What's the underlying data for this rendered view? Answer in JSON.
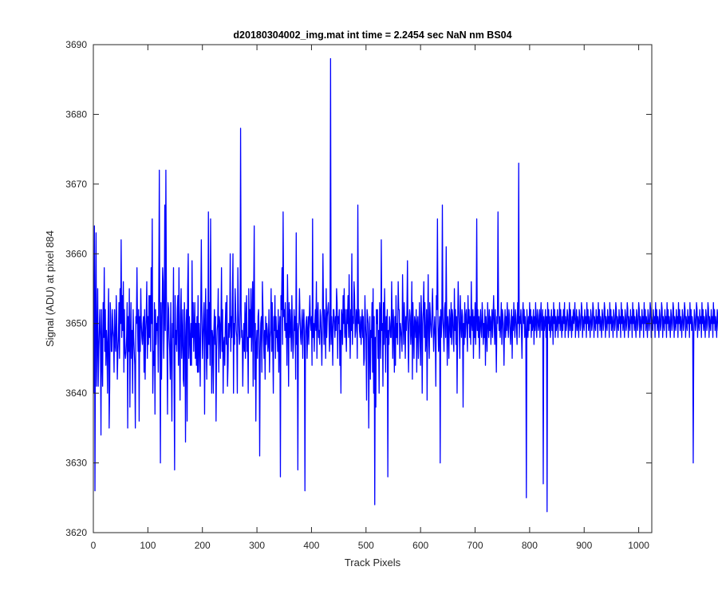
{
  "chart_data": {
    "type": "line",
    "title": "d20180304002_img.mat int time = 2.2454 sec  NaN nm BS04",
    "xlabel": "Track Pixels",
    "ylabel": "Signal (ADU) at pixel 884",
    "xlim": [
      0,
      1024
    ],
    "ylim": [
      3620,
      3690
    ],
    "xticks": [
      0,
      100,
      200,
      300,
      400,
      500,
      600,
      700,
      800,
      900,
      1000
    ],
    "yticks": [
      3620,
      3630,
      3640,
      3650,
      3660,
      3670,
      3680,
      3690
    ],
    "grid": false,
    "legend": "none",
    "series_color": "#0000ff",
    "series": [
      {
        "x_start": 1,
        "x_step": 1,
        "values": [
          3640,
          3664,
          3626,
          3652,
          3663,
          3641,
          3647,
          3655,
          3641,
          3646,
          3649,
          3652,
          3648,
          3634,
          3652,
          3645,
          3641,
          3653,
          3648,
          3658,
          3646,
          3652,
          3644,
          3649,
          3647,
          3640,
          3650,
          3655,
          3635,
          3641,
          3653,
          3651,
          3646,
          3646,
          3652,
          3649,
          3648,
          3643,
          3652,
          3647,
          3646,
          3654,
          3650,
          3642,
          3646,
          3648,
          3653,
          3645,
          3655,
          3650,
          3662,
          3648,
          3654,
          3649,
          3656,
          3643,
          3652,
          3646,
          3645,
          3646,
          3648,
          3653,
          3635,
          3651,
          3646,
          3655,
          3638,
          3648,
          3653,
          3645,
          3649,
          3640,
          3652,
          3648,
          3646,
          3644,
          3635,
          3651,
          3650,
          3658,
          3650,
          3646,
          3652,
          3636,
          3651,
          3646,
          3655,
          3650,
          3648,
          3647,
          3650,
          3651,
          3643,
          3652,
          3642,
          3649,
          3651,
          3656,
          3645,
          3651,
          3647,
          3654,
          3648,
          3654,
          3646,
          3658,
          3650,
          3665,
          3640,
          3646,
          3644,
          3653,
          3637,
          3652,
          3647,
          3650,
          3649,
          3651,
          3643,
          3655,
          3672,
          3648,
          3630,
          3653,
          3642,
          3650,
          3658,
          3656,
          3645,
          3650,
          3667,
          3649,
          3672,
          3654,
          3648,
          3637,
          3653,
          3652,
          3648,
          3646,
          3642,
          3653,
          3646,
          3636,
          3650,
          3648,
          3658,
          3642,
          3629,
          3654,
          3647,
          3649,
          3646,
          3652,
          3654,
          3644,
          3658,
          3647,
          3639,
          3651,
          3655,
          3645,
          3648,
          3652,
          3642,
          3641,
          3653,
          3650,
          3633,
          3648,
          3652,
          3636,
          3655,
          3660,
          3645,
          3651,
          3648,
          3644,
          3650,
          3644,
          3659,
          3648,
          3653,
          3646,
          3649,
          3653,
          3645,
          3650,
          3644,
          3651,
          3643,
          3654,
          3643,
          3650,
          3647,
          3641,
          3652,
          3662,
          3651,
          3645,
          3648,
          3651,
          3653,
          3637,
          3650,
          3655,
          3647,
          3642,
          3652,
          3645,
          3666,
          3647,
          3653,
          3644,
          3665,
          3650,
          3640,
          3649,
          3648,
          3640,
          3649,
          3652,
          3647,
          3651,
          3636,
          3646,
          3649,
          3650,
          3655,
          3643,
          3651,
          3650,
          3645,
          3650,
          3658,
          3646,
          3652,
          3640,
          3647,
          3648,
          3644,
          3650,
          3653,
          3647,
          3654,
          3641,
          3644,
          3650,
          3648,
          3650,
          3660,
          3646,
          3651,
          3648,
          3654,
          3660,
          3640,
          3650,
          3647,
          3655,
          3652,
          3649,
          3648,
          3640,
          3658,
          3652,
          3649,
          3647,
          3648,
          3678,
          3652,
          3648,
          3649,
          3641,
          3647,
          3650,
          3646,
          3653,
          3645,
          3651,
          3654,
          3646,
          3648,
          3640,
          3655,
          3648,
          3652,
          3648,
          3655,
          3646,
          3650,
          3656,
          3641,
          3654,
          3664,
          3642,
          3650,
          3636,
          3647,
          3649,
          3645,
          3651,
          3652,
          3648,
          3631,
          3646,
          3650,
          3651,
          3643,
          3656,
          3652,
          3648,
          3645,
          3649,
          3642,
          3651,
          3647,
          3650,
          3649,
          3646,
          3647,
          3652,
          3643,
          3648,
          3649,
          3655,
          3646,
          3653,
          3647,
          3640,
          3651,
          3649,
          3654,
          3645,
          3651,
          3648,
          3649,
          3646,
          3652,
          3643,
          3649,
          3651,
          3628,
          3654,
          3652,
          3658,
          3647,
          3666,
          3651,
          3652,
          3649,
          3653,
          3648,
          3650,
          3644,
          3657,
          3651,
          3641,
          3653,
          3648,
          3652,
          3649,
          3646,
          3654,
          3650,
          3645,
          3647,
          3652,
          3649,
          3651,
          3642,
          3663,
          3647,
          3650,
          3629,
          3649,
          3650,
          3655,
          3651,
          3648,
          3647,
          3650,
          3652,
          3645,
          3650,
          3652,
          3649,
          3626,
          3648,
          3650,
          3651,
          3645,
          3649,
          3651,
          3647,
          3651,
          3654,
          3650,
          3649,
          3651,
          3644,
          3665,
          3648,
          3650,
          3646,
          3650,
          3652,
          3649,
          3656,
          3645,
          3651,
          3653,
          3648,
          3649,
          3647,
          3652,
          3651,
          3648,
          3644,
          3650,
          3660,
          3652,
          3647,
          3652,
          3650,
          3645,
          3655,
          3648,
          3651,
          3652,
          3653,
          3650,
          3646,
          3649,
          3688,
          3647,
          3651,
          3649,
          3644,
          3652,
          3652,
          3650,
          3648,
          3651,
          3649,
          3655,
          3653,
          3645,
          3651,
          3650,
          3652,
          3644,
          3649,
          3640,
          3652,
          3651,
          3647,
          3654,
          3650,
          3655,
          3648,
          3652,
          3649,
          3646,
          3652,
          3650,
          3654,
          3648,
          3657,
          3650,
          3645,
          3652,
          3649,
          3660,
          3647,
          3651,
          3650,
          3656,
          3654,
          3648,
          3649,
          3652,
          3651,
          3645,
          3667,
          3650,
          3652,
          3649,
          3648,
          3651,
          3647,
          3650,
          3652,
          3648,
          3651,
          3644,
          3645,
          3654,
          3650,
          3648,
          3639,
          3652,
          3651,
          3650,
          3635,
          3647,
          3651,
          3642,
          3649,
          3648,
          3653,
          3643,
          3655,
          3640,
          3651,
          3624,
          3648,
          3638,
          3652,
          3650,
          3652,
          3645,
          3649,
          3640,
          3653,
          3651,
          3645,
          3662,
          3649,
          3650,
          3641,
          3653,
          3647,
          3655,
          3650,
          3643,
          3651,
          3648,
          3652,
          3628,
          3649,
          3647,
          3651,
          3650,
          3648,
          3648,
          3656,
          3650,
          3645,
          3652,
          3649,
          3643,
          3651,
          3644,
          3654,
          3648,
          3650,
          3647,
          3656,
          3652,
          3652,
          3645,
          3650,
          3649,
          3648,
          3646,
          3657,
          3651,
          3647,
          3653,
          3650,
          3645,
          3651,
          3649,
          3652,
          3659,
          3648,
          3643,
          3650,
          3652,
          3651,
          3647,
          3649,
          3656,
          3642,
          3653,
          3649,
          3645,
          3651,
          3650,
          3648,
          3652,
          3643,
          3650,
          3651,
          3645,
          3649,
          3653,
          3648,
          3644,
          3654,
          3651,
          3640,
          3650,
          3652,
          3656,
          3648,
          3653,
          3646,
          3648,
          3652,
          3639,
          3650,
          3657,
          3648,
          3645,
          3653,
          3651,
          3649,
          3648,
          3652,
          3655,
          3650,
          3646,
          3649,
          3651,
          3648,
          3641,
          3654,
          3652,
          3665,
          3650,
          3646,
          3649,
          3651,
          3630,
          3652,
          3648,
          3650,
          3667,
          3651,
          3649,
          3646,
          3652,
          3653,
          3648,
          3661,
          3650,
          3644,
          3651,
          3649,
          3645,
          3652,
          3650,
          3648,
          3653,
          3647,
          3652,
          3651,
          3648,
          3646,
          3655,
          3649,
          3652,
          3647,
          3651,
          3640,
          3650,
          3656,
          3652,
          3649,
          3645,
          3654,
          3650,
          3648,
          3652,
          3651,
          3638,
          3650,
          3647,
          3653,
          3648,
          3651,
          3652,
          3649,
          3646,
          3654,
          3650,
          3652,
          3648,
          3651,
          3647,
          3656,
          3650,
          3649,
          3652,
          3645,
          3651,
          3648,
          3653,
          3647,
          3650,
          3665,
          3649,
          3652,
          3648,
          3651,
          3645,
          3650,
          3652,
          3649,
          3648,
          3653,
          3651,
          3647,
          3650,
          3648,
          3652,
          3644,
          3651,
          3649,
          3646,
          3653,
          3650,
          3648,
          3652,
          3649,
          3651,
          3647,
          3650,
          3652,
          3648,
          3651,
          3654,
          3650,
          3647,
          3652,
          3649,
          3643,
          3651,
          3650,
          3666,
          3652,
          3649,
          3651,
          3648,
          3650,
          3653,
          3647,
          3652,
          3651,
          3649,
          3644,
          3650,
          3652,
          3648,
          3651,
          3649,
          3653,
          3650,
          3648,
          3652,
          3651,
          3649,
          3647,
          3650,
          3652,
          3645,
          3651,
          3649,
          3653,
          3650,
          3648,
          3652,
          3651,
          3649,
          3647,
          3653,
          3650,
          3673,
          3648,
          3651,
          3650,
          3652,
          3649,
          3645,
          3651,
          3653,
          3650,
          3652,
          3648,
          3651,
          3649,
          3625,
          3652,
          3650,
          3648,
          3651,
          3649,
          3653,
          3650,
          3652,
          3648,
          3651,
          3649,
          3650,
          3652,
          3647,
          3651,
          3649,
          3653,
          3650,
          3648,
          3652,
          3651,
          3649,
          3650,
          3652,
          3648,
          3651,
          3653,
          3649,
          3650,
          3652,
          3627,
          3651,
          3649,
          3650,
          3652,
          3648,
          3651,
          3623,
          3653,
          3650,
          3652,
          3649,
          3651,
          3648,
          3650,
          3652,
          3649,
          3651,
          3647,
          3653,
          3650,
          3652,
          3648,
          3651,
          3649,
          3650,
          3652,
          3648,
          3651,
          3650,
          3653,
          3649,
          3652,
          3650,
          3648,
          3651,
          3649,
          3652,
          3650,
          3653,
          3648,
          3651,
          3649,
          3650,
          3652,
          3651,
          3648,
          3650,
          3653,
          3649,
          3652,
          3650,
          3648,
          3651,
          3649,
          3652,
          3650,
          3651,
          3653,
          3648,
          3650,
          3652,
          3649,
          3651,
          3650,
          3648,
          3652,
          3651,
          3649,
          3650,
          3653,
          3652,
          3648,
          3651,
          3650,
          3649,
          3652,
          3650,
          3651,
          3648,
          3653,
          3650,
          3652,
          3649,
          3651,
          3650,
          3648,
          3652,
          3651,
          3649,
          3650,
          3653,
          3652,
          3648,
          3651,
          3650,
          3649,
          3652,
          3650,
          3651,
          3648,
          3653,
          3650,
          3652,
          3649,
          3651,
          3650,
          3648,
          3652,
          3651,
          3649,
          3650,
          3653,
          3652,
          3648,
          3651,
          3650,
          3649,
          3652,
          3650,
          3651,
          3648,
          3653,
          3650,
          3652,
          3649,
          3651,
          3650,
          3648,
          3652,
          3651,
          3649,
          3650,
          3653,
          3652,
          3648,
          3651,
          3650,
          3649,
          3652,
          3650,
          3651,
          3648,
          3653,
          3650,
          3652,
          3649,
          3651,
          3650,
          3648,
          3652,
          3651,
          3649,
          3650,
          3653,
          3652,
          3648,
          3651,
          3650,
          3649,
          3652,
          3650,
          3651,
          3648,
          3653,
          3650,
          3652,
          3649,
          3651,
          3650,
          3648,
          3652,
          3651,
          3649,
          3650,
          3653,
          3652,
          3648,
          3651,
          3650,
          3649,
          3652,
          3650,
          3651,
          3648,
          3653,
          3650,
          3652,
          3649,
          3651,
          3650,
          3648,
          3652,
          3651,
          3649,
          3650,
          3653,
          3652,
          3648,
          3651,
          3650,
          3649,
          3652,
          3650,
          3651,
          3648,
          3653,
          3650,
          3652,
          3649,
          3651,
          3650,
          3648,
          3652,
          3651,
          3649,
          3650,
          3653,
          3652,
          3648,
          3651,
          3650,
          3649,
          3652,
          3650,
          3651,
          3648,
          3653,
          3650,
          3652,
          3649,
          3651,
          3650,
          3648,
          3652,
          3651,
          3649,
          3650,
          3653,
          3652,
          3648,
          3651,
          3650,
          3649,
          3652,
          3650,
          3651,
          3648,
          3653,
          3650,
          3652,
          3649,
          3651,
          3650,
          3648,
          3652,
          3651,
          3649,
          3650,
          3653,
          3652,
          3648,
          3651,
          3650,
          3649,
          3652,
          3650,
          3651,
          3648,
          3653,
          3650,
          3652,
          3649,
          3651,
          3650,
          3630,
          3648,
          3652,
          3651,
          3649,
          3650,
          3653,
          3652,
          3648,
          3651,
          3650,
          3649,
          3652,
          3650,
          3651,
          3648,
          3653,
          3650,
          3652,
          3649,
          3651,
          3650,
          3648,
          3652,
          3651,
          3649,
          3650,
          3653,
          3652,
          3648,
          3651,
          3650,
          3649,
          3652,
          3650,
          3651,
          3648,
          3653,
          3650,
          3652,
          3649,
          3651,
          3650,
          3648,
          3652,
          3651,
          3649,
          3650,
          3653,
          3643,
          3646,
          3644
        ]
      }
    ]
  }
}
